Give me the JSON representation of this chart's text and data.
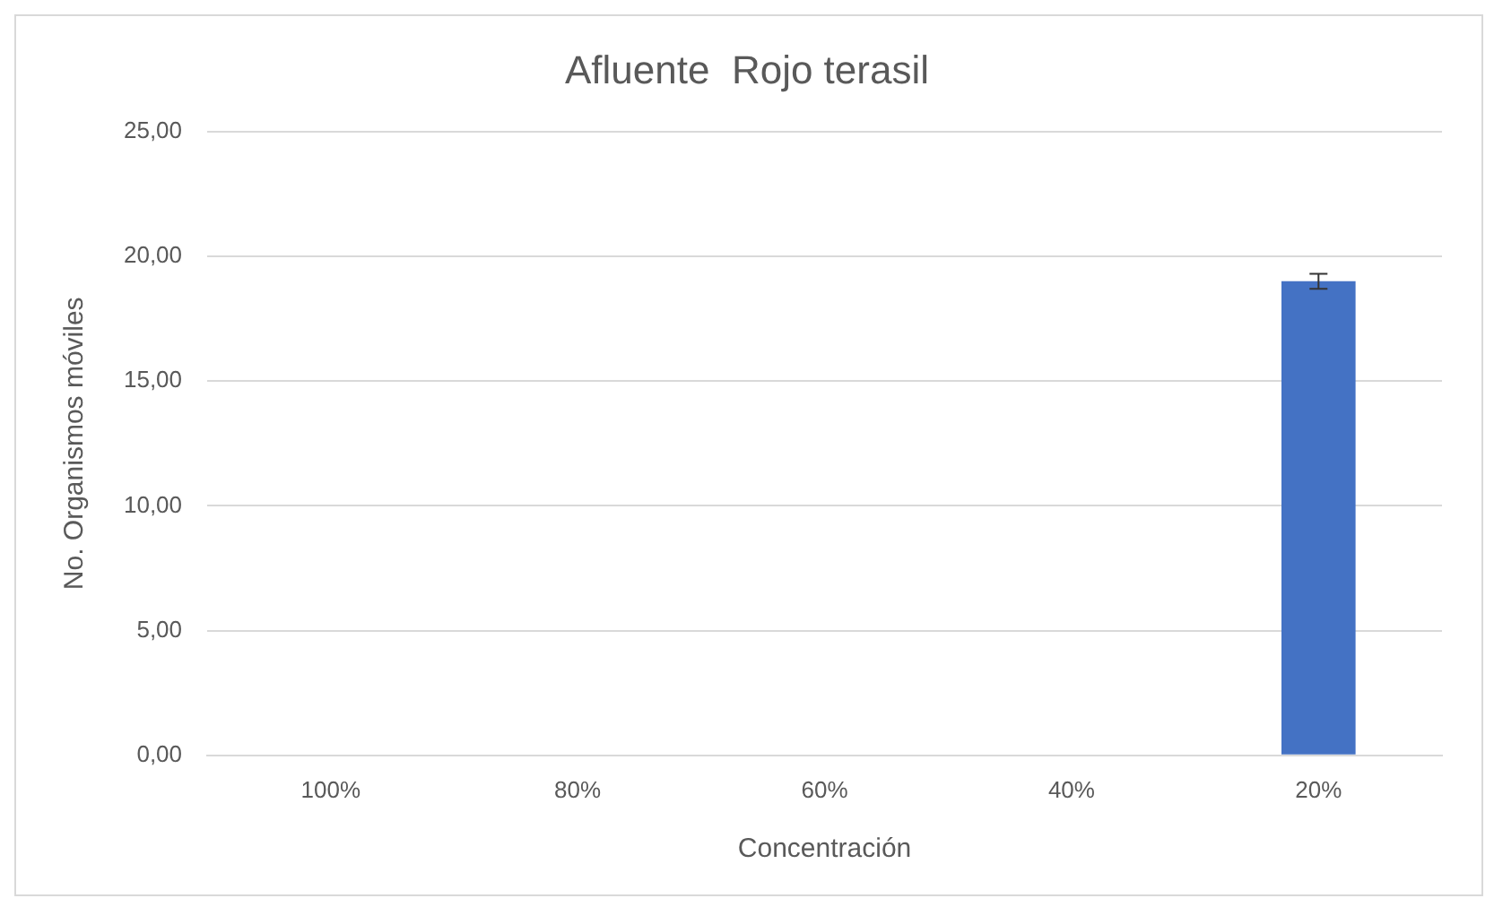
{
  "chart_data": {
    "type": "bar",
    "title": "Afluente  Rojo terasil",
    "xlabel": "Concentración",
    "ylabel": "No. Organismos móviles",
    "categories": [
      "100%",
      "80%",
      "60%",
      "40%",
      "20%"
    ],
    "values": [
      0,
      0,
      0,
      0,
      19.0
    ],
    "errors": [
      null,
      null,
      null,
      null,
      0.3
    ],
    "color": "#4472c4",
    "ylim": [
      0,
      25
    ],
    "yticks": [
      {
        "value": 0,
        "label": "0,00"
      },
      {
        "value": 5,
        "label": "5,00"
      },
      {
        "value": 10,
        "label": "10,00"
      },
      {
        "value": 15,
        "label": "15,00"
      },
      {
        "value": 20,
        "label": "20,00"
      },
      {
        "value": 25,
        "label": "25,00"
      }
    ],
    "grid": "y",
    "legend": false
  }
}
